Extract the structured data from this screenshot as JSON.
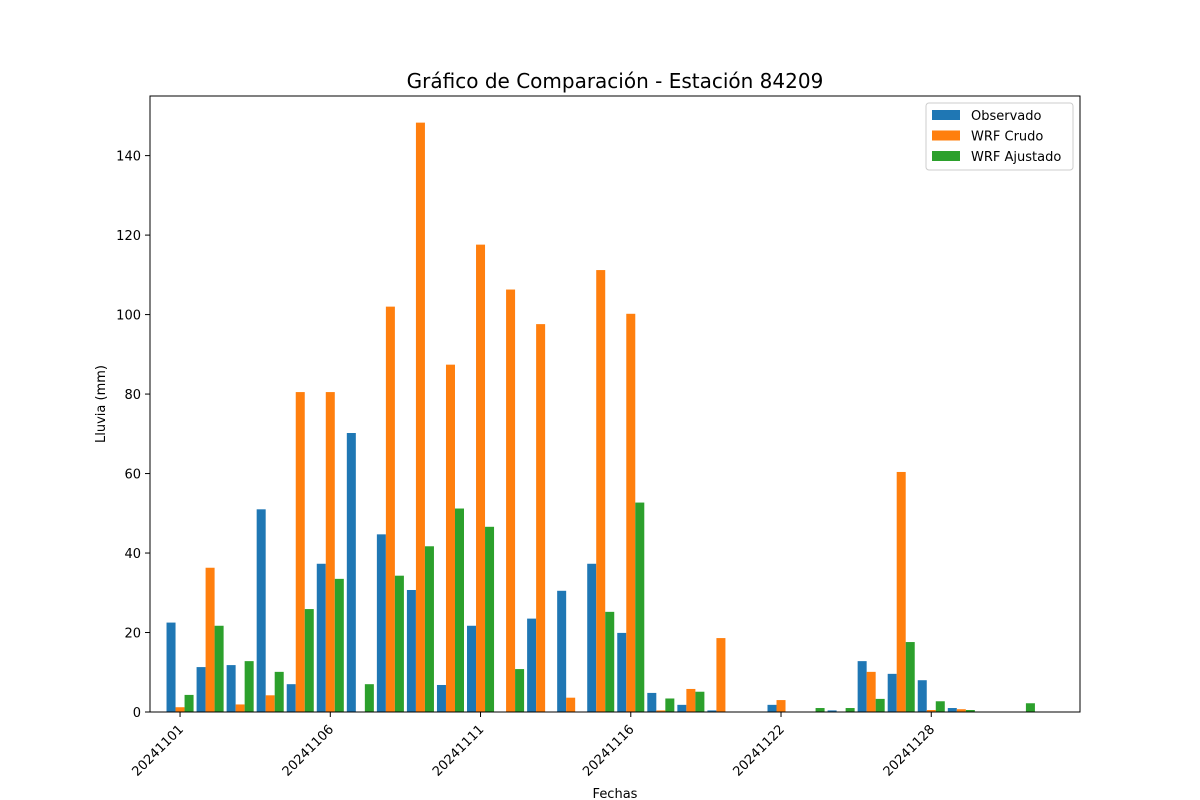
{
  "chart_data": {
    "type": "bar",
    "title": "Gráfico de Comparación - Estación 84209",
    "xlabel": "Fechas",
    "ylabel": "Lluvia (mm)",
    "ylim": [
      0,
      155
    ],
    "yticks": [
      0,
      20,
      40,
      60,
      80,
      100,
      120,
      140
    ],
    "xtick_labels": [
      {
        "day": 1,
        "label": "20241101"
      },
      {
        "day": 6,
        "label": "20241106"
      },
      {
        "day": 11,
        "label": "20241111"
      },
      {
        "day": 16,
        "label": "20241116"
      },
      {
        "day": 21,
        "label": "20241122"
      },
      {
        "day": 26,
        "label": "20241128"
      }
    ],
    "legend_position": "top-right",
    "days": [
      1,
      2,
      3,
      4,
      5,
      6,
      7,
      8,
      9,
      10,
      11,
      12,
      13,
      14,
      15,
      16,
      17,
      18,
      19,
      20,
      21,
      22,
      23,
      24,
      25,
      26,
      27,
      28,
      29
    ],
    "series": [
      {
        "name": "Observado",
        "color": "#1f77b4",
        "values": [
          22.5,
          11.3,
          11.8,
          51.0,
          7.0,
          37.3,
          70.2,
          44.7,
          30.7,
          6.8,
          21.7,
          0,
          23.5,
          30.5,
          37.3,
          19.9,
          4.8,
          1.8,
          0.4,
          0,
          1.8,
          0,
          0.4,
          12.8,
          9.6,
          8.0,
          1.0,
          0,
          0
        ]
      },
      {
        "name": "WRF Crudo",
        "color": "#ff7f0e",
        "values": [
          1.2,
          36.3,
          1.9,
          4.2,
          80.5,
          80.5,
          0,
          102.0,
          148.3,
          87.4,
          117.6,
          106.3,
          97.6,
          3.6,
          111.2,
          100.2,
          0.4,
          5.8,
          18.6,
          0,
          3.0,
          0,
          0,
          10.1,
          60.4,
          0.5,
          0.7,
          0,
          0
        ]
      },
      {
        "name": "WRF Ajustado",
        "color": "#2ca02c",
        "values": [
          4.3,
          21.7,
          12.8,
          10.1,
          25.9,
          33.5,
          7.0,
          34.3,
          41.7,
          51.2,
          46.6,
          10.8,
          0,
          0,
          25.2,
          52.7,
          3.4,
          5.1,
          0,
          0,
          0,
          1.0,
          1.0,
          3.3,
          17.6,
          2.7,
          0.5,
          0,
          2.2
        ]
      }
    ]
  }
}
